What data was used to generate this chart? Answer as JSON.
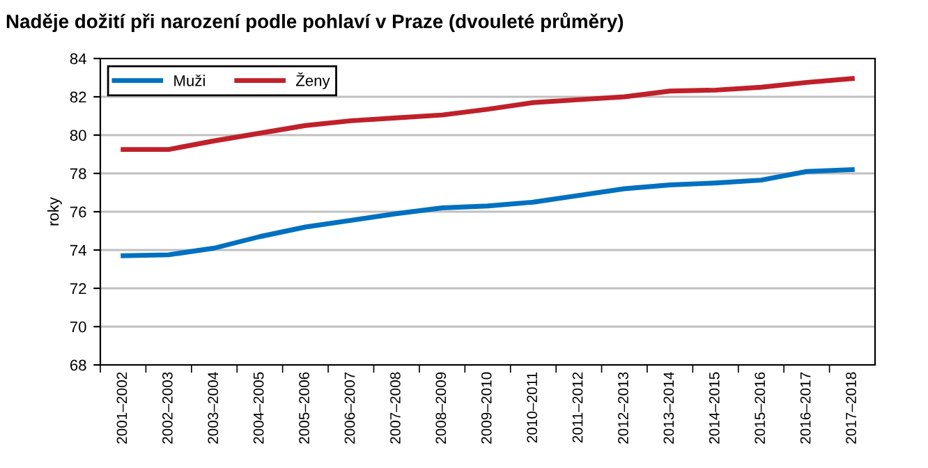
{
  "chart_data": {
    "type": "line",
    "title": "Naděje dožití při narození podle pohlaví v Praze (dvouleté průměry)",
    "ylabel": "roky",
    "categories": [
      "2001–2002",
      "2002–2003",
      "2003–2004",
      "2004–2005",
      "2005–2006",
      "2006–2007",
      "2007–2008",
      "2008–2009",
      "2009–2010",
      "2010–2011",
      "2011–2012",
      "2012–2013",
      "2013–2014",
      "2014–2015",
      "2015–2016",
      "2016–2017",
      "2017–2018"
    ],
    "series": [
      {
        "name": "Muži",
        "color": "#0070c0",
        "values": [
          73.7,
          73.75,
          74.1,
          74.7,
          75.2,
          75.55,
          75.9,
          76.2,
          76.3,
          76.5,
          76.85,
          77.2,
          77.4,
          77.5,
          77.65,
          78.1,
          78.2
        ]
      },
      {
        "name": "Ženy",
        "color": "#c0202a",
        "values": [
          79.25,
          79.25,
          79.7,
          80.1,
          80.5,
          80.75,
          80.9,
          81.05,
          81.35,
          81.7,
          81.85,
          82.0,
          82.3,
          82.35,
          82.5,
          82.75,
          82.95
        ]
      }
    ],
    "ylim": [
      68,
      84
    ],
    "yticks": [
      68,
      70,
      72,
      74,
      76,
      78,
      80,
      82,
      84
    ],
    "grid": "y",
    "legend": "top left",
    "line_style": "solid",
    "marker": "none"
  }
}
